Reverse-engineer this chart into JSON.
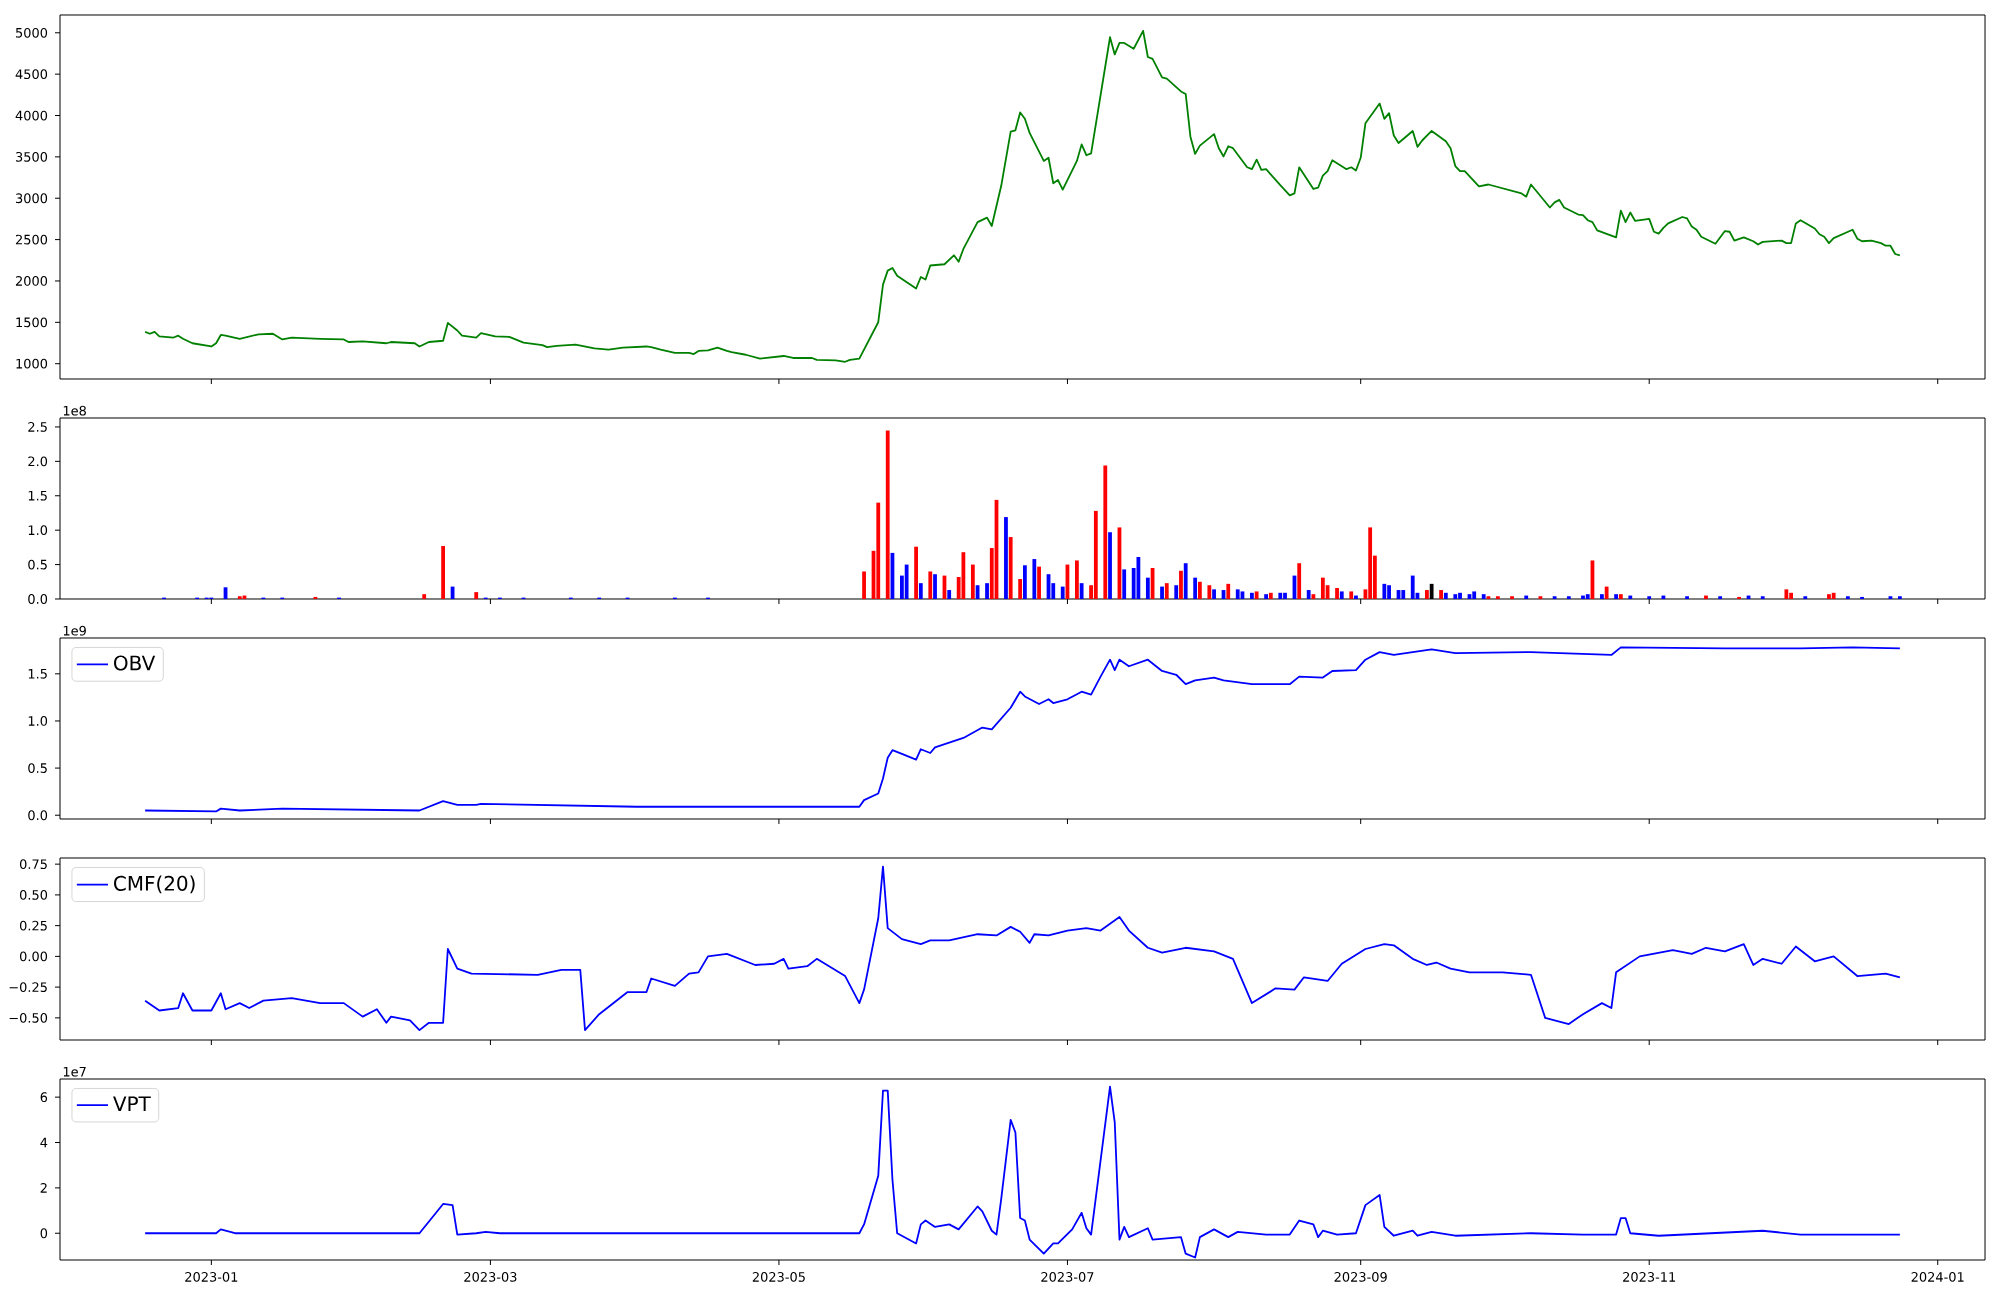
{
  "chart_data": [
    {
      "type": "line",
      "xlim": [
        "2022-11-30",
        "2024-01-11"
      ],
      "ylim": [
        815,
        5215
      ],
      "tick_labels": "y",
      "xticks": [
        {
          "value": "2023-01-01",
          "label": null
        },
        {
          "value": "2023-03-01",
          "label": null
        },
        {
          "value": "2023-05-01",
          "label": null
        },
        {
          "value": "2023-07-01",
          "label": null
        },
        {
          "value": "2023-09-01",
          "label": null
        },
        {
          "value": "2023-11-01",
          "label": null
        },
        {
          "value": "2024-01-01",
          "label": null
        }
      ],
      "yticks": [
        1000,
        1500,
        2000,
        2500,
        3000,
        3500,
        4000,
        4500,
        5000
      ],
      "series": [
        {
          "color": "#008000",
          "x": [
            "2022-12-18",
            "2022-12-19",
            "2022-12-20",
            "2022-12-21",
            "2022-12-24",
            "2022-12-25",
            "2022-12-26",
            "2022-12-28",
            "2023-01-01",
            "2023-01-02",
            "2023-01-03",
            "2023-01-04",
            "2023-01-07",
            "2023-01-11",
            "2023-01-14",
            "2023-01-16",
            "2023-01-18",
            "2023-01-24",
            "2023-01-29",
            "2023-01-30",
            "2023-02-02",
            "2023-02-07",
            "2023-02-08",
            "2023-02-13",
            "2023-02-14",
            "2023-02-16",
            "2023-02-19",
            "2023-02-20",
            "2023-02-22",
            "2023-02-23",
            "2023-02-26",
            "2023-02-27",
            "2023-03-02",
            "2023-03-05",
            "2023-03-08",
            "2023-03-12",
            "2023-03-13",
            "2023-03-15",
            "2023-03-19",
            "2023-03-23",
            "2023-03-26",
            "2023-03-29",
            "2023-04-03",
            "2023-04-04",
            "2023-04-06",
            "2023-04-09",
            "2023-04-12",
            "2023-04-13",
            "2023-04-14",
            "2023-04-16",
            "2023-04-18",
            "2023-04-20",
            "2023-04-21",
            "2023-04-24",
            "2023-04-27",
            "2023-05-02",
            "2023-05-04",
            "2023-05-08",
            "2023-05-09",
            "2023-05-13",
            "2023-05-15",
            "2023-05-16",
            "2023-05-18",
            "2023-05-22",
            "2023-05-23",
            "2023-05-24",
            "2023-05-25",
            "2023-05-26",
            "2023-05-30",
            "2023-05-31",
            "2023-06-01",
            "2023-06-02",
            "2023-06-05",
            "2023-06-07",
            "2023-06-08",
            "2023-06-09",
            "2023-06-12",
            "2023-06-14",
            "2023-06-15",
            "2023-06-17",
            "2023-06-19",
            "2023-06-20",
            "2023-06-21",
            "2023-06-22",
            "2023-06-23",
            "2023-06-26",
            "2023-06-27",
            "2023-06-28",
            "2023-06-29",
            "2023-06-30",
            "2023-07-03",
            "2023-07-04",
            "2023-07-05",
            "2023-07-06",
            "2023-07-10",
            "2023-07-11",
            "2023-07-12",
            "2023-07-13",
            "2023-07-15",
            "2023-07-17",
            "2023-07-18",
            "2023-07-19",
            "2023-07-21",
            "2023-07-22",
            "2023-07-25",
            "2023-07-26",
            "2023-07-27",
            "2023-07-28",
            "2023-07-29",
            "2023-08-01",
            "2023-08-02",
            "2023-08-03",
            "2023-08-04",
            "2023-08-05",
            "2023-08-08",
            "2023-08-09",
            "2023-08-10",
            "2023-08-11",
            "2023-08-12",
            "2023-08-15",
            "2023-08-17",
            "2023-08-18",
            "2023-08-19",
            "2023-08-22",
            "2023-08-23",
            "2023-08-24",
            "2023-08-25",
            "2023-08-26",
            "2023-08-29",
            "2023-08-30",
            "2023-08-31",
            "2023-09-01",
            "2023-09-02",
            "2023-09-05",
            "2023-09-06",
            "2023-09-07",
            "2023-09-08",
            "2023-09-09",
            "2023-09-12",
            "2023-09-13",
            "2023-09-14",
            "2023-09-16",
            "2023-09-19",
            "2023-09-20",
            "2023-09-21",
            "2023-09-22",
            "2023-09-23",
            "2023-09-26",
            "2023-09-28",
            "2023-10-05",
            "2023-10-06",
            "2023-10-07",
            "2023-10-11",
            "2023-10-12",
            "2023-10-13",
            "2023-10-14",
            "2023-10-17",
            "2023-10-18",
            "2023-10-19",
            "2023-10-20",
            "2023-10-21",
            "2023-10-25",
            "2023-10-26",
            "2023-10-27",
            "2023-10-28",
            "2023-10-29",
            "2023-11-01",
            "2023-11-02",
            "2023-11-03",
            "2023-11-04",
            "2023-11-05",
            "2023-11-08",
            "2023-11-09",
            "2023-11-10",
            "2023-11-11",
            "2023-11-12",
            "2023-11-15",
            "2023-11-17",
            "2023-11-18",
            "2023-11-19",
            "2023-11-21",
            "2023-11-23",
            "2023-11-24",
            "2023-11-25",
            "2023-11-29",
            "2023-11-30",
            "2023-12-01",
            "2023-12-02",
            "2023-12-03",
            "2023-12-06",
            "2023-12-07",
            "2023-12-08",
            "2023-12-09",
            "2023-12-10",
            "2023-12-14",
            "2023-12-15",
            "2023-12-16",
            "2023-12-18",
            "2023-12-20",
            "2023-12-21",
            "2023-12-22",
            "2023-12-23",
            "2023-12-24"
          ],
          "values": [
            1385,
            1362,
            1385,
            1331,
            1316,
            1339,
            1301,
            1247,
            1208,
            1247,
            1347,
            1339,
            1301,
            1355,
            1362,
            1293,
            1316,
            1301,
            1293,
            1262,
            1270,
            1247,
            1262,
            1247,
            1208,
            1262,
            1277,
            1493,
            1401,
            1339,
            1316,
            1370,
            1331,
            1324,
            1254,
            1224,
            1200,
            1216,
            1231,
            1185,
            1170,
            1193,
            1208,
            1200,
            1170,
            1131,
            1131,
            1116,
            1154,
            1162,
            1193,
            1154,
            1139,
            1108,
            1062,
            1093,
            1069,
            1069,
            1046,
            1039,
            1023,
            1046,
            1062,
            1501,
            1956,
            2125,
            2156,
            2064,
            1909,
            2048,
            2017,
            2187,
            2202,
            2310,
            2233,
            2387,
            2711,
            2765,
            2665,
            3150,
            3805,
            3821,
            4037,
            3960,
            3790,
            3451,
            3489,
            3181,
            3220,
            3104,
            3451,
            3651,
            3520,
            3543,
            4946,
            4738,
            4877,
            4877,
            4807,
            5023,
            4707,
            4684,
            4460,
            4445,
            4291,
            4260,
            3744,
            3536,
            3636,
            3775,
            3605,
            3505,
            3628,
            3605,
            3374,
            3351,
            3466,
            3343,
            3351,
            3158,
            3035,
            3058,
            3374,
            3112,
            3127,
            3274,
            3328,
            3459,
            3351,
            3374,
            3335,
            3489,
            3906,
            4144,
            3960,
            4029,
            3759,
            3667,
            3813,
            3621,
            3698,
            3813,
            3690,
            3605,
            3389,
            3328,
            3328,
            3143,
            3166,
            3058,
            3019,
            3166,
            2888,
            2950,
            2980,
            2888,
            2803,
            2796,
            2734,
            2711,
            2611,
            2526,
            2850,
            2711,
            2827,
            2727,
            2750,
            2595,
            2572,
            2642,
            2696,
            2773,
            2757,
            2657,
            2619,
            2534,
            2449,
            2603,
            2595,
            2488,
            2526,
            2480,
            2441,
            2472,
            2488,
            2457,
            2457,
            2696,
            2734,
            2634,
            2565,
            2534,
            2457,
            2518,
            2619,
            2511,
            2480,
            2488,
            2457,
            2426,
            2426,
            2326,
            2310
          ]
        }
      ]
    },
    {
      "type": "bar",
      "xlim": [
        "2022-11-30",
        "2024-01-11"
      ],
      "ylim": [
        0,
        2.63
      ],
      "tick_labels": "y",
      "xticks": [
        {
          "value": "2023-01-01",
          "label": null
        },
        {
          "value": "2023-03-01",
          "label": null
        },
        {
          "value": "2023-05-01",
          "label": null
        },
        {
          "value": "2023-07-01",
          "label": null
        },
        {
          "value": "2023-09-01",
          "label": null
        },
        {
          "value": "2023-11-01",
          "label": null
        },
        {
          "value": "2024-01-01",
          "label": null
        }
      ],
      "yticks": [
        {
          "value": 0,
          "label": "0.0"
        },
        0.5,
        {
          "value": 1,
          "label": "1.0"
        },
        1.5,
        {
          "value": 2,
          "label": "2.0"
        },
        2.5
      ],
      "annotations": [
        "1e8"
      ],
      "series": [
        {
          "x": [
            "2022-12-22",
            "2022-12-29",
            "2022-12-31",
            "2023-01-01",
            "2023-01-04",
            "2023-01-07",
            "2023-01-08",
            "2023-01-12",
            "2023-01-16",
            "2023-01-23",
            "2023-01-28",
            "2023-02-15",
            "2023-02-19",
            "2023-02-21",
            "2023-02-26",
            "2023-02-28",
            "2023-03-03",
            "2023-03-08",
            "2023-03-18",
            "2023-03-24",
            "2023-03-30",
            "2023-04-09",
            "2023-04-16",
            "2023-05-19",
            "2023-05-21",
            "2023-05-22",
            "2023-05-24",
            "2023-05-25",
            "2023-05-27",
            "2023-05-28",
            "2023-05-30",
            "2023-05-31",
            "2023-06-02",
            "2023-06-03",
            "2023-06-05",
            "2023-06-06",
            "2023-06-08",
            "2023-06-09",
            "2023-06-11",
            "2023-06-12",
            "2023-06-14",
            "2023-06-15",
            "2023-06-16",
            "2023-06-18",
            "2023-06-19",
            "2023-06-21",
            "2023-06-22",
            "2023-06-24",
            "2023-06-25",
            "2023-06-27",
            "2023-06-28",
            "2023-06-30",
            "2023-07-01",
            "2023-07-03",
            "2023-07-04",
            "2023-07-06",
            "2023-07-07",
            "2023-07-09",
            "2023-07-10",
            "2023-07-12",
            "2023-07-13",
            "2023-07-15",
            "2023-07-16",
            "2023-07-18",
            "2023-07-19",
            "2023-07-21",
            "2023-07-22",
            "2023-07-24",
            "2023-07-25",
            "2023-07-26",
            "2023-07-28",
            "2023-07-29",
            "2023-07-31",
            "2023-08-01",
            "2023-08-03",
            "2023-08-04",
            "2023-08-06",
            "2023-08-07",
            "2023-08-09",
            "2023-08-10",
            "2023-08-12",
            "2023-08-13",
            "2023-08-15",
            "2023-08-16",
            "2023-08-18",
            "2023-08-19",
            "2023-08-21",
            "2023-08-22",
            "2023-08-24",
            "2023-08-25",
            "2023-08-27",
            "2023-08-28",
            "2023-08-30",
            "2023-08-31",
            "2023-09-02",
            "2023-09-03",
            "2023-09-04",
            "2023-09-06",
            "2023-09-07",
            "2023-09-09",
            "2023-09-10",
            "2023-09-12",
            "2023-09-13",
            "2023-09-15",
            "2023-09-16",
            "2023-09-18",
            "2023-09-19",
            "2023-09-21",
            "2023-09-22",
            "2023-09-24",
            "2023-09-25",
            "2023-09-27",
            "2023-09-28",
            "2023-09-30",
            "2023-10-03",
            "2023-10-06",
            "2023-10-09",
            "2023-10-12",
            "2023-10-15",
            "2023-10-18",
            "2023-10-19",
            "2023-10-20",
            "2023-10-22",
            "2023-10-23",
            "2023-10-25",
            "2023-10-26",
            "2023-10-28",
            "2023-11-01",
            "2023-11-04",
            "2023-11-09",
            "2023-11-13",
            "2023-11-16",
            "2023-11-20",
            "2023-11-22",
            "2023-11-25",
            "2023-11-30",
            "2023-12-01",
            "2023-12-04",
            "2023-12-09",
            "2023-12-10",
            "2023-12-13",
            "2023-12-16",
            "2023-12-22",
            "2023-12-24"
          ],
          "values": [
            0.02,
            0.02,
            0.02,
            0.02,
            0.17,
            0.04,
            0.05,
            0.02,
            0.02,
            0.03,
            0.02,
            0.07,
            0.77,
            0.18,
            0.1,
            0.02,
            0.02,
            0.02,
            0.02,
            0.02,
            0.02,
            0.02,
            0.02,
            0.4,
            0.7,
            1.4,
            2.45,
            0.67,
            0.34,
            0.5,
            0.76,
            0.23,
            0.4,
            0.36,
            0.34,
            0.13,
            0.32,
            0.68,
            0.5,
            0.2,
            0.23,
            0.74,
            1.44,
            1.19,
            0.9,
            0.29,
            0.49,
            0.58,
            0.47,
            0.36,
            0.23,
            0.18,
            0.5,
            0.56,
            0.23,
            0.2,
            1.28,
            1.94,
            0.97,
            1.04,
            0.43,
            0.45,
            0.61,
            0.31,
            0.45,
            0.18,
            0.23,
            0.2,
            0.41,
            0.52,
            0.31,
            0.25,
            0.2,
            0.14,
            0.13,
            0.22,
            0.14,
            0.11,
            0.09,
            0.11,
            0.07,
            0.09,
            0.09,
            0.09,
            0.34,
            0.52,
            0.13,
            0.07,
            0.31,
            0.2,
            0.16,
            0.11,
            0.11,
            0.05,
            0.14,
            1.04,
            0.63,
            0.22,
            0.2,
            0.13,
            0.13,
            0.34,
            0.09,
            0.13,
            0.22,
            0.13,
            0.09,
            0.07,
            0.09,
            0.07,
            0.11,
            0.07,
            0.04,
            0.04,
            0.04,
            0.05,
            0.04,
            0.04,
            0.04,
            0.05,
            0.07,
            0.56,
            0.07,
            0.18,
            0.07,
            0.07,
            0.05,
            0.04,
            0.05,
            0.04,
            0.05,
            0.04,
            0.03,
            0.05,
            0.04,
            0.14,
            0.09,
            0.04,
            0.07,
            0.09,
            0.04,
            0.03,
            0.04,
            0.04
          ],
          "colors": [
            "#0000ff",
            "#0000ff",
            "#0000ff",
            "#0000ff",
            "#0000ff",
            "#ff0000",
            "#ff0000",
            "#0000ff",
            "#0000ff",
            "#ff0000",
            "#0000ff",
            "#ff0000",
            "#ff0000",
            "#0000ff",
            "#ff0000",
            "#0000ff",
            "#0000ff",
            "#0000ff",
            "#0000ff",
            "#0000ff",
            "#0000ff",
            "#0000ff",
            "#0000ff",
            "#ff0000",
            "#ff0000",
            "#ff0000",
            "#ff0000",
            "#0000ff",
            "#0000ff",
            "#0000ff",
            "#ff0000",
            "#0000ff",
            "#ff0000",
            "#0000ff",
            "#ff0000",
            "#0000ff",
            "#ff0000",
            "#ff0000",
            "#ff0000",
            "#0000ff",
            "#0000ff",
            "#ff0000",
            "#ff0000",
            "#0000ff",
            "#ff0000",
            "#ff0000",
            "#0000ff",
            "#0000ff",
            "#ff0000",
            "#0000ff",
            "#0000ff",
            "#0000ff",
            "#ff0000",
            "#ff0000",
            "#0000ff",
            "#ff0000",
            "#ff0000",
            "#ff0000",
            "#0000ff",
            "#ff0000",
            "#0000ff",
            "#0000ff",
            "#0000ff",
            "#0000ff",
            "#ff0000",
            "#0000ff",
            "#ff0000",
            "#0000ff",
            "#ff0000",
            "#0000ff",
            "#0000ff",
            "#ff0000",
            "#ff0000",
            "#0000ff",
            "#0000ff",
            "#ff0000",
            "#0000ff",
            "#0000ff",
            "#0000ff",
            "#ff0000",
            "#0000ff",
            "#ff0000",
            "#0000ff",
            "#0000ff",
            "#0000ff",
            "#ff0000",
            "#0000ff",
            "#ff0000",
            "#ff0000",
            "#ff0000",
            "#ff0000",
            "#0000ff",
            "#ff0000",
            "#0000ff",
            "#ff0000",
            "#ff0000",
            "#ff0000",
            "#0000ff",
            "#0000ff",
            "#0000ff",
            "#0000ff",
            "#0000ff",
            "#0000ff",
            "#ff0000",
            "#000000",
            "#ff0000",
            "#0000ff",
            "#0000ff",
            "#0000ff",
            "#0000ff",
            "#0000ff",
            "#0000ff",
            "#ff0000",
            "#ff0000",
            "#ff0000",
            "#0000ff",
            "#ff0000",
            "#0000ff",
            "#0000ff",
            "#0000ff",
            "#0000ff",
            "#ff0000",
            "#0000ff",
            "#ff0000",
            "#0000ff",
            "#ff0000",
            "#0000ff",
            "#0000ff",
            "#0000ff",
            "#0000ff",
            "#ff0000",
            "#0000ff",
            "#ff0000",
            "#0000ff",
            "#0000ff",
            "#ff0000",
            "#ff0000",
            "#0000ff",
            "#ff0000",
            "#ff0000",
            "#0000ff",
            "#0000ff",
            "#0000ff",
            "#0000ff"
          ]
        }
      ]
    },
    {
      "type": "line",
      "xlim": [
        "2022-11-30",
        "2024-01-11"
      ],
      "ylim": [
        -0.04,
        1.88
      ],
      "tick_labels": "y",
      "legend": "top left",
      "xticks": [
        {
          "value": "2023-01-01",
          "label": null
        },
        {
          "value": "2023-03-01",
          "label": null
        },
        {
          "value": "2023-05-01",
          "label": null
        },
        {
          "value": "2023-07-01",
          "label": null
        },
        {
          "value": "2023-09-01",
          "label": null
        },
        {
          "value": "2023-11-01",
          "label": null
        },
        {
          "value": "2024-01-01",
          "label": null
        }
      ],
      "yticks": [
        {
          "value": 0,
          "label": "0.0"
        },
        0.5,
        {
          "value": 1,
          "label": "1.0"
        },
        1.5
      ],
      "annotations": [
        "1e9"
      ],
      "series": [
        {
          "name": "OBV",
          "color": "#0000ff",
          "x": [
            "2022-12-18",
            "2023-01-02",
            "2023-01-03",
            "2023-01-07",
            "2023-01-16",
            "2023-02-14",
            "2023-02-19",
            "2023-02-22",
            "2023-02-26",
            "2023-02-27",
            "2023-04-01",
            "2023-04-28",
            "2023-05-18",
            "2023-05-19",
            "2023-05-22",
            "2023-05-23",
            "2023-05-24",
            "2023-05-25",
            "2023-05-27",
            "2023-05-30",
            "2023-05-31",
            "2023-06-02",
            "2023-06-03",
            "2023-06-06",
            "2023-06-09",
            "2023-06-13",
            "2023-06-15",
            "2023-06-19",
            "2023-06-21",
            "2023-06-22",
            "2023-06-25",
            "2023-06-27",
            "2023-06-28",
            "2023-07-01",
            "2023-07-04",
            "2023-07-06",
            "2023-07-08",
            "2023-07-10",
            "2023-07-11",
            "2023-07-12",
            "2023-07-14",
            "2023-07-18",
            "2023-07-21",
            "2023-07-24",
            "2023-07-26",
            "2023-07-28",
            "2023-08-01",
            "2023-08-03",
            "2023-08-09",
            "2023-08-17",
            "2023-08-19",
            "2023-08-24",
            "2023-08-26",
            "2023-08-31",
            "2023-09-02",
            "2023-09-05",
            "2023-09-08",
            "2023-09-16",
            "2023-09-21",
            "2023-10-07",
            "2023-10-24",
            "2023-10-26",
            "2023-11-17",
            "2023-12-03",
            "2023-12-14",
            "2023-12-24"
          ],
          "values": [
            0.05,
            0.04,
            0.07,
            0.05,
            0.07,
            0.05,
            0.15,
            0.11,
            0.11,
            0.12,
            0.09,
            0.09,
            0.09,
            0.16,
            0.23,
            0.39,
            0.61,
            0.69,
            0.65,
            0.59,
            0.7,
            0.66,
            0.72,
            0.77,
            0.82,
            0.93,
            0.91,
            1.14,
            1.31,
            1.26,
            1.18,
            1.23,
            1.19,
            1.23,
            1.31,
            1.28,
            1.47,
            1.65,
            1.54,
            1.65,
            1.58,
            1.65,
            1.53,
            1.49,
            1.39,
            1.43,
            1.46,
            1.43,
            1.39,
            1.39,
            1.47,
            1.46,
            1.53,
            1.54,
            1.65,
            1.73,
            1.7,
            1.76,
            1.72,
            1.73,
            1.7,
            1.78,
            1.77,
            1.77,
            1.78,
            1.77
          ]
        }
      ]
    },
    {
      "type": "line",
      "xlim": [
        "2022-11-30",
        "2024-01-11"
      ],
      "ylim": [
        -0.68,
        0.8
      ],
      "tick_labels": "y",
      "legend": "top left",
      "xticks": [
        {
          "value": "2023-01-01",
          "label": null
        },
        {
          "value": "2023-03-01",
          "label": null
        },
        {
          "value": "2023-05-01",
          "label": null
        },
        {
          "value": "2023-07-01",
          "label": null
        },
        {
          "value": "2023-09-01",
          "label": null
        },
        {
          "value": "2023-11-01",
          "label": null
        },
        {
          "value": "2024-01-01",
          "label": null
        }
      ],
      "yticks": [
        {
          "value": -0.5,
          "label": "−0.50"
        },
        {
          "value": -0.25,
          "label": "−0.25"
        },
        {
          "value": 0,
          "label": "0.00"
        },
        0.25,
        {
          "value": 0.5,
          "label": "0.50"
        },
        0.75
      ],
      "series": [
        {
          "name": "CMF(20)",
          "color": "#0000ff",
          "x": [
            "2022-12-18",
            "2022-12-21",
            "2022-12-25",
            "2022-12-26",
            "2022-12-28",
            "2023-01-01",
            "2023-01-03",
            "2023-01-04",
            "2023-01-07",
            "2023-01-09",
            "2023-01-12",
            "2023-01-18",
            "2023-01-24",
            "2023-01-29",
            "2023-02-02",
            "2023-02-05",
            "2023-02-07",
            "2023-02-08",
            "2023-02-12",
            "2023-02-14",
            "2023-02-16",
            "2023-02-19",
            "2023-02-20",
            "2023-02-22",
            "2023-02-25",
            "2023-03-11",
            "2023-03-16",
            "2023-03-20",
            "2023-03-21",
            "2023-03-24",
            "2023-03-30",
            "2023-04-03",
            "2023-04-04",
            "2023-04-09",
            "2023-04-12",
            "2023-04-14",
            "2023-04-16",
            "2023-04-20",
            "2023-04-26",
            "2023-04-30",
            "2023-05-02",
            "2023-05-03",
            "2023-05-07",
            "2023-05-09",
            "2023-05-15",
            "2023-05-18",
            "2023-05-19",
            "2023-05-22",
            "2023-05-23",
            "2023-05-24",
            "2023-05-27",
            "2023-05-31",
            "2023-06-02",
            "2023-06-06",
            "2023-06-12",
            "2023-06-16",
            "2023-06-19",
            "2023-06-21",
            "2023-06-23",
            "2023-06-24",
            "2023-06-27",
            "2023-07-01",
            "2023-07-05",
            "2023-07-08",
            "2023-07-12",
            "2023-07-14",
            "2023-07-18",
            "2023-07-21",
            "2023-07-26",
            "2023-08-01",
            "2023-08-05",
            "2023-08-09",
            "2023-08-14",
            "2023-08-18",
            "2023-08-20",
            "2023-08-25",
            "2023-08-28",
            "2023-09-02",
            "2023-09-06",
            "2023-09-08",
            "2023-09-12",
            "2023-09-15",
            "2023-09-17",
            "2023-09-20",
            "2023-09-24",
            "2023-10-01",
            "2023-10-07",
            "2023-10-10",
            "2023-10-15",
            "2023-10-18",
            "2023-10-22",
            "2023-10-24",
            "2023-10-25",
            "2023-10-30",
            "2023-11-06",
            "2023-11-10",
            "2023-11-13",
            "2023-11-17",
            "2023-11-21",
            "2023-11-23",
            "2023-11-25",
            "2023-11-29",
            "2023-12-02",
            "2023-12-06",
            "2023-12-10",
            "2023-12-15",
            "2023-12-21",
            "2023-12-24"
          ],
          "values": [
            -0.36,
            -0.44,
            -0.42,
            -0.3,
            -0.44,
            -0.44,
            -0.3,
            -0.43,
            -0.38,
            -0.42,
            -0.36,
            -0.34,
            -0.38,
            -0.38,
            -0.49,
            -0.43,
            -0.54,
            -0.49,
            -0.52,
            -0.6,
            -0.54,
            -0.54,
            0.06,
            -0.1,
            -0.14,
            -0.15,
            -0.11,
            -0.11,
            -0.6,
            -0.47,
            -0.29,
            -0.29,
            -0.18,
            -0.24,
            -0.14,
            -0.13,
            0.0,
            0.02,
            -0.07,
            -0.06,
            -0.02,
            -0.1,
            -0.08,
            -0.02,
            -0.16,
            -0.38,
            -0.27,
            0.31,
            0.73,
            0.23,
            0.14,
            0.1,
            0.13,
            0.13,
            0.18,
            0.17,
            0.24,
            0.2,
            0.11,
            0.18,
            0.17,
            0.21,
            0.23,
            0.21,
            0.32,
            0.21,
            0.07,
            0.03,
            0.07,
            0.04,
            -0.02,
            -0.38,
            -0.26,
            -0.27,
            -0.17,
            -0.2,
            -0.06,
            0.06,
            0.1,
            0.09,
            -0.02,
            -0.07,
            -0.05,
            -0.1,
            -0.13,
            -0.13,
            -0.15,
            -0.5,
            -0.55,
            -0.47,
            -0.38,
            -0.42,
            -0.13,
            0.0,
            0.05,
            0.02,
            0.07,
            0.04,
            0.1,
            -0.07,
            -0.02,
            -0.06,
            0.08,
            -0.04,
            0.0,
            -0.16,
            -0.14,
            -0.17
          ]
        }
      ]
    },
    {
      "type": "line",
      "xlim": [
        "2022-11-30",
        "2024-01-11"
      ],
      "ylim": [
        -1.18,
        6.8
      ],
      "legend": "top left",
      "xticks": [
        {
          "value": "2023-01-01",
          "label": "2023-01"
        },
        {
          "value": "2023-03-01",
          "label": "2023-03"
        },
        {
          "value": "2023-05-01",
          "label": "2023-05"
        },
        {
          "value": "2023-07-01",
          "label": "2023-07"
        },
        {
          "value": "2023-09-01",
          "label": "2023-09"
        },
        {
          "value": "2023-11-01",
          "label": "2023-11"
        },
        {
          "value": "2024-01-01",
          "label": "2024-01"
        }
      ],
      "yticks": [
        0,
        2,
        4,
        6
      ],
      "annotations": [
        "1e7"
      ],
      "series": [
        {
          "name": "VPT",
          "color": "#0000ff",
          "x": [
            "2022-12-18",
            "2023-01-02",
            "2023-01-03",
            "2023-01-06",
            "2023-02-14",
            "2023-02-19",
            "2023-02-21",
            "2023-02-22",
            "2023-02-26",
            "2023-02-28",
            "2023-03-03",
            "2023-05-18",
            "2023-05-19",
            "2023-05-22",
            "2023-05-23",
            "2023-05-24",
            "2023-05-25",
            "2023-05-26",
            "2023-05-30",
            "2023-05-31",
            "2023-06-01",
            "2023-06-03",
            "2023-06-06",
            "2023-06-08",
            "2023-06-12",
            "2023-06-13",
            "2023-06-15",
            "2023-06-16",
            "2023-06-17",
            "2023-06-19",
            "2023-06-20",
            "2023-06-21",
            "2023-06-22",
            "2023-06-23",
            "2023-06-26",
            "2023-06-28",
            "2023-06-29",
            "2023-07-02",
            "2023-07-04",
            "2023-07-05",
            "2023-07-06",
            "2023-07-10",
            "2023-07-11",
            "2023-07-12",
            "2023-07-13",
            "2023-07-14",
            "2023-07-18",
            "2023-07-19",
            "2023-07-25",
            "2023-07-26",
            "2023-07-28",
            "2023-07-29",
            "2023-08-01",
            "2023-08-04",
            "2023-08-06",
            "2023-08-12",
            "2023-08-17",
            "2023-08-19",
            "2023-08-22",
            "2023-08-23",
            "2023-08-24",
            "2023-08-27",
            "2023-08-31",
            "2023-09-02",
            "2023-09-05",
            "2023-09-06",
            "2023-09-08",
            "2023-09-12",
            "2023-09-13",
            "2023-09-16",
            "2023-09-21",
            "2023-10-07",
            "2023-10-18",
            "2023-10-25",
            "2023-10-26",
            "2023-10-27",
            "2023-10-28",
            "2023-11-03",
            "2023-11-25",
            "2023-12-03",
            "2023-12-24"
          ],
          "values": [
            0,
            0,
            0.17,
            0,
            0,
            1.29,
            1.24,
            -0.06,
            0,
            0.06,
            0,
            0,
            0.39,
            2.53,
            6.29,
            6.29,
            2.36,
            0,
            -0.45,
            0.39,
            0.56,
            0.28,
            0.39,
            0.17,
            1.18,
            0.96,
            0.11,
            -0.06,
            1.52,
            5.0,
            4.44,
            0.67,
            0.56,
            -0.28,
            -0.9,
            -0.45,
            -0.45,
            0.17,
            0.9,
            0.22,
            -0.06,
            6.46,
            4.89,
            -0.28,
            0.28,
            -0.17,
            0.22,
            -0.28,
            -0.17,
            -0.9,
            -1.07,
            -0.17,
            0.17,
            -0.17,
            0.06,
            -0.06,
            -0.06,
            0.56,
            0.39,
            -0.17,
            0.11,
            -0.06,
            0,
            1.24,
            1.69,
            0.28,
            -0.11,
            0.11,
            -0.11,
            0.06,
            -0.11,
            0,
            -0.06,
            -0.06,
            0.67,
            0.67,
            0,
            -0.11,
            0.11,
            -0.06,
            -0.06
          ]
        }
      ]
    }
  ]
}
